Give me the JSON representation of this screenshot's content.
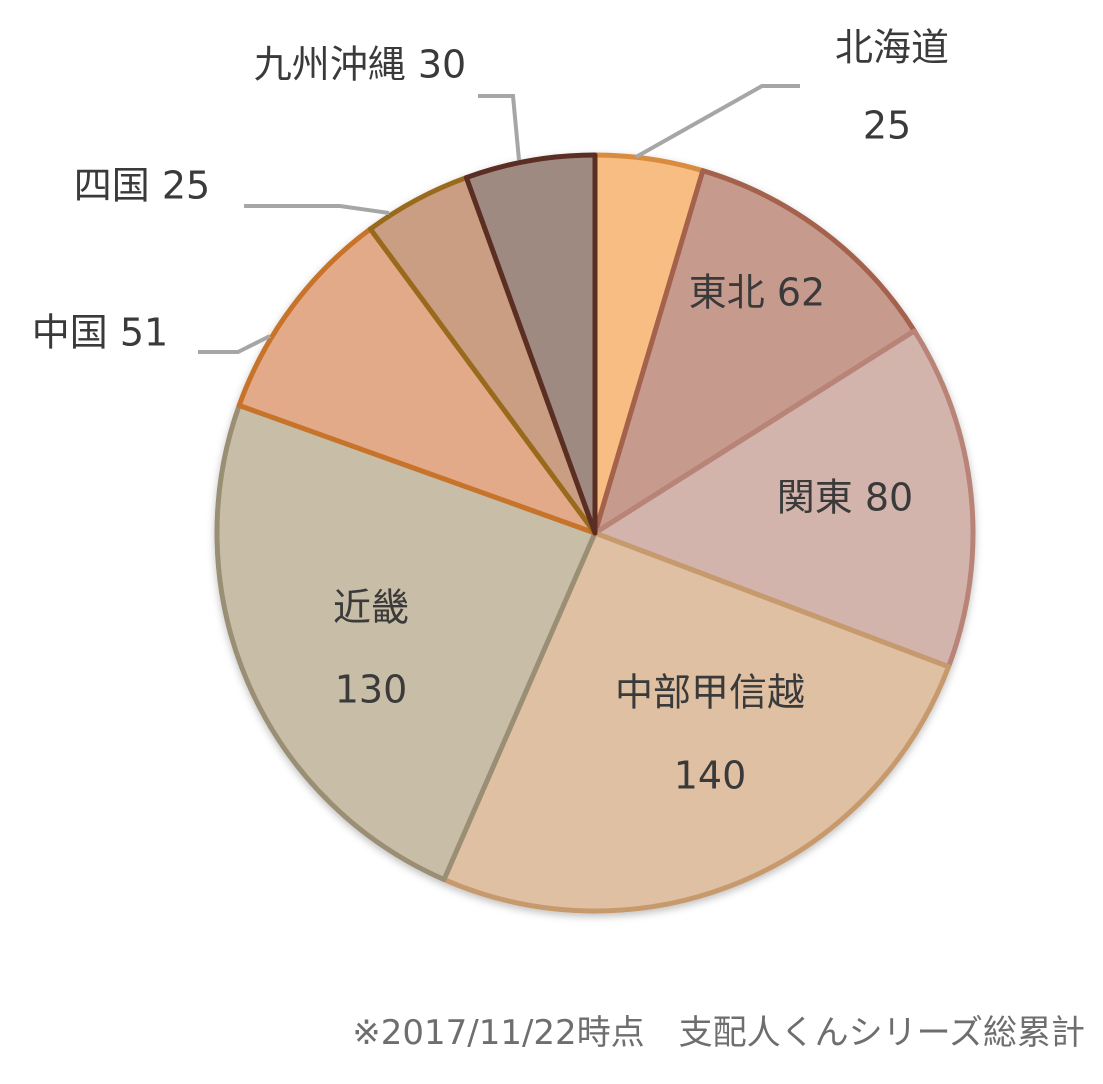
{
  "chart_data": {
    "type": "pie",
    "start_angle_deg": 0,
    "direction": "clockwise",
    "slices": [
      {
        "label": "北海道",
        "value": 25,
        "color": "#F7BD82",
        "stroke": "#D98C3F",
        "label_style": "outside"
      },
      {
        "label": "東北",
        "value": 62,
        "color": "#C79A8E",
        "stroke": "#A4624E",
        "label_style": "inside"
      },
      {
        "label": "関東",
        "value": 80,
        "color": "#D3B4AD",
        "stroke": "#B88478",
        "label_style": "inside"
      },
      {
        "label": "中部甲信越",
        "value": 140,
        "color": "#DFC0A3",
        "stroke": "#C79A6E",
        "label_style": "inside-two-line"
      },
      {
        "label": "近畿",
        "value": 130,
        "color": "#C8BDA6",
        "stroke": "#9A8F75",
        "label_style": "inside-two-line"
      },
      {
        "label": "中国",
        "value": 51,
        "color": "#E3AA8A",
        "stroke": "#C8732C",
        "label_style": "outside"
      },
      {
        "label": "四国",
        "value": 25,
        "color": "#C99E82",
        "stroke": "#9A6A1E",
        "label_style": "outside"
      },
      {
        "label": "九州沖縄",
        "value": 30,
        "color": "#9F8A82",
        "stroke": "#5A2E22",
        "label_style": "outside"
      }
    ]
  },
  "footnote": "※2017/11/22時点　支配人くんシリーズ総累計"
}
